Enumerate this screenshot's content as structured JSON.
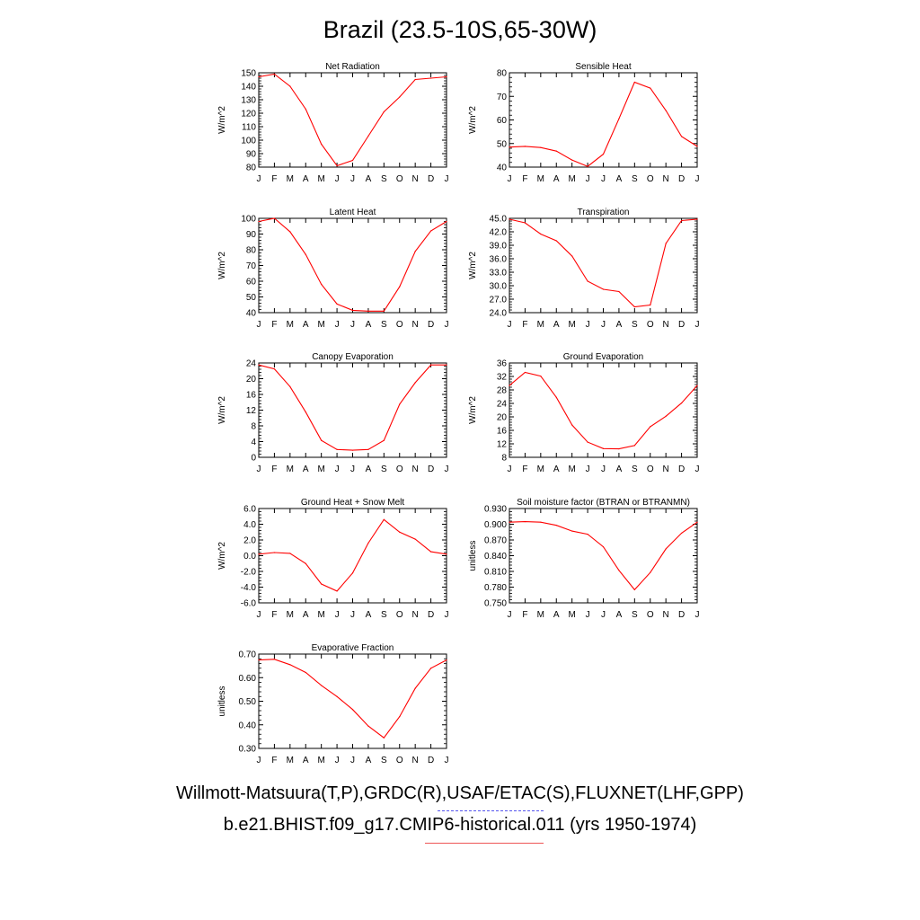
{
  "title": "Brazil (23.5-10S,65-30W)",
  "footer": {
    "line1": "Willmott-Matsuura(T,P),GRDC(R),USAF/ETAC(S),FLUXNET(LHF,GPP)",
    "line2": "b.e21.BHIST.f09_g17.CMIP6-historical.011 (yrs 1950-1974)"
  },
  "colors": {
    "model_line": "#ff0000",
    "obs_legend": "#5555ee",
    "model_legend": "#ee5555"
  },
  "chart_data": [
    {
      "type": "line",
      "title": "Net Radiation",
      "ylabel": "W/m^2",
      "categories": [
        "J",
        "F",
        "M",
        "A",
        "M",
        "J",
        "J",
        "A",
        "S",
        "O",
        "N",
        "D",
        "J"
      ],
      "ylim": [
        80,
        150
      ],
      "yticks": [
        "80",
        "90",
        "100",
        "110",
        "120",
        "130",
        "140",
        "150"
      ],
      "values": [
        147,
        149,
        140,
        123,
        97,
        81,
        85,
        103,
        121,
        132,
        145,
        146,
        147
      ]
    },
    {
      "type": "line",
      "title": "Sensible Heat",
      "ylabel": "W/m^2",
      "categories": [
        "J",
        "F",
        "M",
        "A",
        "M",
        "J",
        "J",
        "A",
        "S",
        "O",
        "N",
        "D",
        "J"
      ],
      "ylim": [
        40,
        80
      ],
      "yticks": [
        "40",
        "50",
        "60",
        "70",
        "80"
      ],
      "values": [
        48.5,
        48.8,
        48.3,
        46.8,
        43,
        40.3,
        45.5,
        60.5,
        76,
        73.5,
        64,
        53,
        48.8
      ]
    },
    {
      "type": "line",
      "title": "Latent Heat",
      "ylabel": "W/m^2",
      "categories": [
        "J",
        "F",
        "M",
        "A",
        "M",
        "J",
        "J",
        "A",
        "S",
        "O",
        "N",
        "D",
        "J"
      ],
      "ylim": [
        40,
        100
      ],
      "yticks": [
        "40",
        "50",
        "60",
        "70",
        "80",
        "90",
        "100"
      ],
      "values": [
        98,
        100,
        91.5,
        77,
        58,
        45.5,
        41.5,
        41,
        41,
        56.5,
        79,
        92,
        98
      ]
    },
    {
      "type": "line",
      "title": "Transpiration",
      "ylabel": "W/m^2",
      "categories": [
        "J",
        "F",
        "M",
        "A",
        "M",
        "J",
        "J",
        "A",
        "S",
        "O",
        "N",
        "D",
        "J"
      ],
      "ylim": [
        24,
        45
      ],
      "yticks": [
        "24.0",
        "27.0",
        "30.0",
        "33.0",
        "36.0",
        "39.0",
        "42.0",
        "45.0"
      ],
      "values": [
        44.8,
        44.0,
        41.5,
        40.0,
        36.6,
        31.0,
        29.2,
        28.7,
        25.3,
        25.7,
        39.4,
        44.5,
        44.8
      ]
    },
    {
      "type": "line",
      "title": "Canopy Evaporation",
      "ylabel": "W/m^2",
      "categories": [
        "J",
        "F",
        "M",
        "A",
        "M",
        "J",
        "J",
        "A",
        "S",
        "O",
        "N",
        "D",
        "J"
      ],
      "ylim": [
        0,
        24
      ],
      "yticks": [
        "0",
        "4",
        "8",
        "12",
        "16",
        "20",
        "24"
      ],
      "values": [
        23.5,
        22.5,
        18,
        11.5,
        4.3,
        2.0,
        1.8,
        2.0,
        4.3,
        13.5,
        19,
        23.5,
        23.5
      ]
    },
    {
      "type": "line",
      "title": "Ground Evaporation",
      "ylabel": "W/m^2",
      "categories": [
        "J",
        "F",
        "M",
        "A",
        "M",
        "J",
        "J",
        "A",
        "S",
        "O",
        "N",
        "D",
        "J"
      ],
      "ylim": [
        8,
        36
      ],
      "yticks": [
        "8",
        "12",
        "16",
        "20",
        "24",
        "28",
        "32",
        "36"
      ],
      "values": [
        29.3,
        33.2,
        32.1,
        25.8,
        17.6,
        12.5,
        10.6,
        10.5,
        11.5,
        17.1,
        20.2,
        24.1,
        29.3
      ]
    },
    {
      "type": "line",
      "title": "Ground Heat + Snow Melt",
      "ylabel": "W/m^2",
      "categories": [
        "J",
        "F",
        "M",
        "A",
        "M",
        "J",
        "J",
        "A",
        "S",
        "O",
        "N",
        "D",
        "J"
      ],
      "ylim": [
        -6,
        6
      ],
      "yticks": [
        "-6.0",
        "-4.0",
        "-2.0",
        "0.0",
        "2.0",
        "4.0",
        "6.0"
      ],
      "values": [
        0.2,
        0.4,
        0.3,
        -1.0,
        -3.6,
        -4.5,
        -2.2,
        1.6,
        4.6,
        3.0,
        2.1,
        0.5,
        0.2
      ]
    },
    {
      "type": "line",
      "title": "Soil moisture factor (BTRAN or BTRANMN)",
      "ylabel": "unitless",
      "categories": [
        "J",
        "F",
        "M",
        "A",
        "M",
        "J",
        "J",
        "A",
        "S",
        "O",
        "N",
        "D",
        "J"
      ],
      "ylim": [
        0.75,
        0.93
      ],
      "yticks": [
        "0.750",
        "0.780",
        "0.810",
        "0.840",
        "0.870",
        "0.900",
        "0.930"
      ],
      "values": [
        0.904,
        0.905,
        0.904,
        0.898,
        0.887,
        0.881,
        0.857,
        0.812,
        0.775,
        0.808,
        0.853,
        0.883,
        0.904
      ]
    },
    {
      "type": "line",
      "title": "Evaporative Fraction",
      "ylabel": "unitless",
      "categories": [
        "J",
        "F",
        "M",
        "A",
        "M",
        "J",
        "J",
        "A",
        "S",
        "O",
        "N",
        "D",
        "J"
      ],
      "ylim": [
        0.3,
        0.7
      ],
      "yticks": [
        "0.30",
        "0.40",
        "0.50",
        "0.60",
        "0.70"
      ],
      "values": [
        0.675,
        0.678,
        0.655,
        0.622,
        0.567,
        0.52,
        0.465,
        0.395,
        0.345,
        0.435,
        0.555,
        0.64,
        0.675
      ]
    }
  ]
}
